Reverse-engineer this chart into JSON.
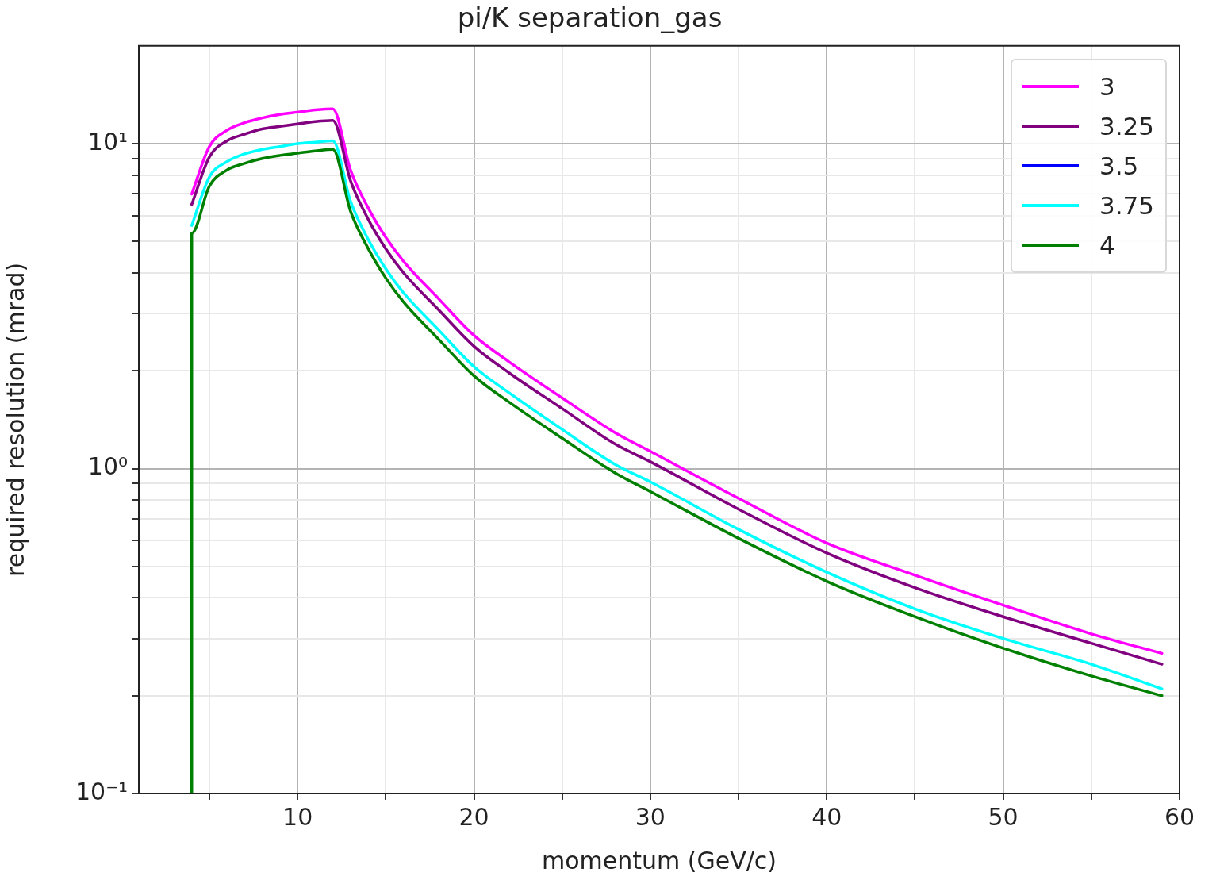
{
  "chart_data": {
    "type": "line",
    "title": "pi/K separation_gas",
    "xlabel": "momentum (GeV/c)",
    "ylabel": "required resolution (mrad)",
    "log": "y",
    "grid": true,
    "legend": "top right",
    "line_style": "solid",
    "xlim": [
      1,
      60
    ],
    "xticks": [
      {
        "value": 5,
        "label": null
      },
      10,
      {
        "value": 15,
        "label": null
      },
      20,
      {
        "value": 25,
        "label": null
      },
      30,
      {
        "value": 35,
        "label": null
      },
      40,
      {
        "value": 45,
        "label": null
      },
      50,
      {
        "value": 55,
        "label": null
      },
      60
    ],
    "ylim": [
      0.1,
      20
    ],
    "yticks": [
      {
        "value": 0.1,
        "label": "10⁻¹"
      },
      {
        "value": 0.2,
        "label": null
      },
      {
        "value": 0.3,
        "label": null
      },
      {
        "value": 0.4,
        "label": null
      },
      {
        "value": 0.5,
        "label": null
      },
      {
        "value": 0.6,
        "label": null
      },
      {
        "value": 0.7,
        "label": null
      },
      {
        "value": 0.8,
        "label": null
      },
      {
        "value": 0.9,
        "label": null
      },
      {
        "value": 1,
        "label": "10⁰"
      },
      {
        "value": 2,
        "label": null
      },
      {
        "value": 3,
        "label": null
      },
      {
        "value": 4,
        "label": null
      },
      {
        "value": 5,
        "label": null
      },
      {
        "value": 6,
        "label": null
      },
      {
        "value": 7,
        "label": null
      },
      {
        "value": 8,
        "label": null
      },
      {
        "value": 9,
        "label": null
      },
      {
        "value": 10,
        "label": "10¹"
      }
    ],
    "x": [
      4,
      4,
      5,
      6,
      7,
      8,
      9,
      10,
      11,
      12,
      13,
      14,
      15,
      16,
      18,
      20,
      22,
      25,
      28,
      30,
      35,
      40,
      45,
      50,
      55,
      59
    ],
    "series": [
      {
        "name": "3",
        "color": "#ff00ff",
        "values": [
          null,
          7.0,
          9.8,
          11.0,
          11.6,
          12.0,
          12.3,
          12.5,
          12.7,
          12.8,
          8.3,
          6.35,
          5.15,
          4.35,
          3.33,
          2.57,
          2.13,
          1.65,
          1.29,
          1.13,
          0.81,
          0.59,
          0.47,
          0.38,
          0.31,
          0.27
        ]
      },
      {
        "name": "3.25",
        "color": "#800080",
        "values": [
          null,
          6.5,
          9.1,
          10.2,
          10.7,
          11.1,
          11.3,
          11.5,
          11.7,
          11.8,
          7.7,
          5.86,
          4.75,
          4.01,
          3.08,
          2.38,
          1.97,
          1.53,
          1.19,
          1.05,
          0.75,
          0.55,
          0.43,
          0.35,
          0.29,
          0.25
        ]
      },
      {
        "name": "3.5",
        "color": "#0000ff",
        "values": [
          null,
          null,
          null,
          null,
          null,
          null,
          null,
          null,
          null,
          null,
          null,
          null,
          null,
          null,
          null,
          null,
          null,
          null,
          null,
          null,
          null,
          null,
          null,
          null,
          null,
          null
        ]
      },
      {
        "name": "3.75",
        "color": "#00ffff",
        "values": [
          null,
          5.6,
          7.9,
          8.8,
          9.3,
          9.6,
          9.8,
          10.0,
          10.1,
          10.2,
          6.65,
          5.08,
          4.12,
          3.48,
          2.67,
          2.06,
          1.71,
          1.32,
          1.03,
          0.91,
          0.65,
          0.48,
          0.37,
          0.3,
          0.25,
          0.21
        ]
      },
      {
        "name": "4",
        "color": "#008000",
        "values": [
          0.1,
          5.3,
          7.4,
          8.3,
          8.7,
          9.0,
          9.2,
          9.35,
          9.5,
          9.6,
          6.2,
          4.76,
          3.86,
          3.26,
          2.5,
          1.93,
          1.6,
          1.24,
          0.97,
          0.85,
          0.61,
          0.45,
          0.35,
          0.28,
          0.23,
          0.2
        ]
      }
    ]
  }
}
